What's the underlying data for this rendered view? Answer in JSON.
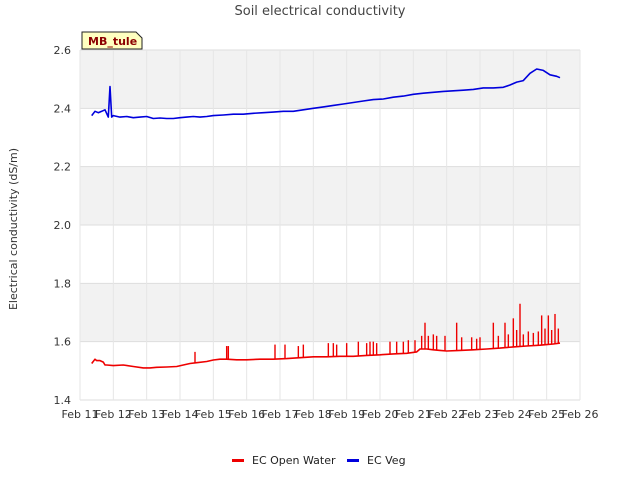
{
  "chart_data": {
    "type": "line",
    "title": "Soil electrical conductivity",
    "site_label": "MB_tule",
    "xlabel": "",
    "ylabel": "Electrical conductivity (dS/m)",
    "xlim": [
      11,
      26
    ],
    "ylim": [
      1.4,
      2.6
    ],
    "x_ticks": [
      {
        "value": 11,
        "label": "Feb 11"
      },
      {
        "value": 12,
        "label": "Feb 12"
      },
      {
        "value": 13,
        "label": "Feb 13"
      },
      {
        "value": 14,
        "label": "Feb 14"
      },
      {
        "value": 15,
        "label": "Feb 15"
      },
      {
        "value": 16,
        "label": "Feb 16"
      },
      {
        "value": 17,
        "label": "Feb 17"
      },
      {
        "value": 18,
        "label": "Feb 18"
      },
      {
        "value": 19,
        "label": "Feb 19"
      },
      {
        "value": 20,
        "label": "Feb 20"
      },
      {
        "value": 21,
        "label": "Feb 21"
      },
      {
        "value": 22,
        "label": "Feb 22"
      },
      {
        "value": 23,
        "label": "Feb 23"
      },
      {
        "value": 24,
        "label": "Feb 24"
      },
      {
        "value": 25,
        "label": "Feb 25"
      },
      {
        "value": 26,
        "label": "Feb 26"
      }
    ],
    "y_ticks": [
      {
        "value": 1.4,
        "label": "1.4"
      },
      {
        "value": 1.6,
        "label": "1.6"
      },
      {
        "value": 1.8,
        "label": "1.8"
      },
      {
        "value": 2.0,
        "label": "2.0"
      },
      {
        "value": 2.2,
        "label": "2.2"
      },
      {
        "value": 2.4,
        "label": "2.4"
      },
      {
        "value": 2.6,
        "label": "2.6"
      }
    ],
    "grid": true,
    "legend_position": "bottom",
    "series": [
      {
        "name": "EC Open Water",
        "color": "#ee0000",
        "x": [
          11.35,
          11.45,
          11.5,
          11.6,
          11.7,
          11.75,
          11.8,
          12.0,
          12.3,
          12.6,
          12.9,
          13.1,
          13.3,
          13.6,
          13.9,
          14.1,
          14.3,
          14.5,
          14.8,
          15.0,
          15.2,
          15.4,
          15.7,
          16.0,
          16.4,
          16.8,
          17.2,
          17.6,
          18.0,
          18.4,
          18.8,
          19.2,
          19.6,
          20.0,
          20.4,
          20.8,
          21.1,
          21.2,
          21.4,
          21.6,
          21.8,
          22.0,
          22.4,
          22.8,
          23.2,
          23.6,
          24.0,
          24.4,
          24.8,
          25.0,
          25.2,
          25.4
        ],
        "y": [
          1.525,
          1.54,
          1.535,
          1.535,
          1.53,
          1.52,
          1.52,
          1.518,
          1.52,
          1.515,
          1.51,
          1.51,
          1.512,
          1.513,
          1.515,
          1.52,
          1.525,
          1.528,
          1.532,
          1.537,
          1.54,
          1.54,
          1.538,
          1.538,
          1.54,
          1.54,
          1.542,
          1.545,
          1.548,
          1.548,
          1.55,
          1.55,
          1.553,
          1.555,
          1.558,
          1.56,
          1.565,
          1.575,
          1.575,
          1.572,
          1.57,
          1.568,
          1.57,
          1.572,
          1.575,
          1.578,
          1.582,
          1.585,
          1.588,
          1.59,
          1.592,
          1.595
        ],
        "spikes": [
          {
            "x": 14.45,
            "y": 1.565
          },
          {
            "x": 15.4,
            "y": 1.585
          },
          {
            "x": 15.45,
            "y": 1.585
          },
          {
            "x": 16.85,
            "y": 1.59
          },
          {
            "x": 17.15,
            "y": 1.59
          },
          {
            "x": 17.55,
            "y": 1.585
          },
          {
            "x": 17.7,
            "y": 1.59
          },
          {
            "x": 18.45,
            "y": 1.595
          },
          {
            "x": 18.6,
            "y": 1.595
          },
          {
            "x": 18.7,
            "y": 1.59
          },
          {
            "x": 19.0,
            "y": 1.595
          },
          {
            "x": 19.35,
            "y": 1.6
          },
          {
            "x": 19.6,
            "y": 1.595
          },
          {
            "x": 19.7,
            "y": 1.6
          },
          {
            "x": 19.8,
            "y": 1.6
          },
          {
            "x": 19.9,
            "y": 1.595
          },
          {
            "x": 20.3,
            "y": 1.6
          },
          {
            "x": 20.5,
            "y": 1.6
          },
          {
            "x": 20.7,
            "y": 1.6
          },
          {
            "x": 20.85,
            "y": 1.605
          },
          {
            "x": 21.05,
            "y": 1.605
          },
          {
            "x": 21.25,
            "y": 1.62
          },
          {
            "x": 21.35,
            "y": 1.665
          },
          {
            "x": 21.45,
            "y": 1.62
          },
          {
            "x": 21.6,
            "y": 1.625
          },
          {
            "x": 21.7,
            "y": 1.62
          },
          {
            "x": 21.95,
            "y": 1.62
          },
          {
            "x": 22.3,
            "y": 1.665
          },
          {
            "x": 22.45,
            "y": 1.615
          },
          {
            "x": 22.75,
            "y": 1.615
          },
          {
            "x": 22.9,
            "y": 1.61
          },
          {
            "x": 23.0,
            "y": 1.615
          },
          {
            "x": 23.4,
            "y": 1.665
          },
          {
            "x": 23.55,
            "y": 1.62
          },
          {
            "x": 23.75,
            "y": 1.665
          },
          {
            "x": 23.85,
            "y": 1.625
          },
          {
            "x": 24.0,
            "y": 1.68
          },
          {
            "x": 24.1,
            "y": 1.64
          },
          {
            "x": 24.2,
            "y": 1.73
          },
          {
            "x": 24.3,
            "y": 1.625
          },
          {
            "x": 24.45,
            "y": 1.635
          },
          {
            "x": 24.6,
            "y": 1.63
          },
          {
            "x": 24.75,
            "y": 1.635
          },
          {
            "x": 24.85,
            "y": 1.69
          },
          {
            "x": 24.95,
            "y": 1.645
          },
          {
            "x": 25.05,
            "y": 1.69
          },
          {
            "x": 25.15,
            "y": 1.64
          },
          {
            "x": 25.25,
            "y": 1.695
          },
          {
            "x": 25.35,
            "y": 1.645
          }
        ]
      },
      {
        "name": "EC Veg",
        "color": "#0000dd",
        "x": [
          11.35,
          11.45,
          11.55,
          11.65,
          11.75,
          11.85,
          11.9,
          11.95,
          12.0,
          12.2,
          12.4,
          12.6,
          12.8,
          13.0,
          13.2,
          13.4,
          13.6,
          13.8,
          14.0,
          14.2,
          14.4,
          14.6,
          14.8,
          15.0,
          15.3,
          15.6,
          15.9,
          16.2,
          16.5,
          16.8,
          17.1,
          17.4,
          17.7,
          18.0,
          18.3,
          18.6,
          18.9,
          19.2,
          19.5,
          19.8,
          20.1,
          20.4,
          20.7,
          21.0,
          21.3,
          21.6,
          21.9,
          22.2,
          22.5,
          22.8,
          23.1,
          23.4,
          23.7,
          23.9,
          24.1,
          24.3,
          24.5,
          24.7,
          24.9,
          25.1,
          25.3,
          25.4
        ],
        "y": [
          2.375,
          2.39,
          2.385,
          2.39,
          2.395,
          2.37,
          2.475,
          2.37,
          2.375,
          2.37,
          2.372,
          2.368,
          2.37,
          2.372,
          2.365,
          2.367,
          2.365,
          2.365,
          2.368,
          2.37,
          2.372,
          2.37,
          2.372,
          2.375,
          2.377,
          2.38,
          2.38,
          2.383,
          2.385,
          2.387,
          2.39,
          2.39,
          2.395,
          2.4,
          2.405,
          2.41,
          2.415,
          2.42,
          2.425,
          2.43,
          2.432,
          2.438,
          2.442,
          2.448,
          2.452,
          2.455,
          2.458,
          2.46,
          2.462,
          2.465,
          2.47,
          2.47,
          2.472,
          2.48,
          2.49,
          2.495,
          2.52,
          2.535,
          2.53,
          2.515,
          2.51,
          2.505
        ]
      }
    ]
  }
}
